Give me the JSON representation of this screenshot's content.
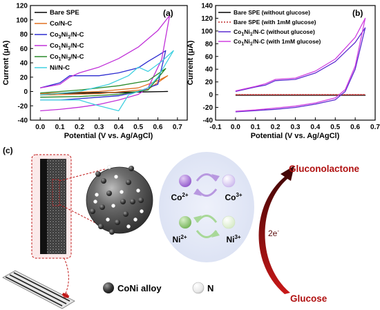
{
  "panel_a": {
    "label": "(a)",
    "chart_data": {
      "type": "line",
      "xlabel": "Potential (V vs. Ag/AgCl)",
      "ylabel": "Current (μA)",
      "xlim": [
        -0.05,
        0.75
      ],
      "ylim": [
        -40,
        120
      ],
      "xticks": [
        "0.0",
        "0.1",
        "0.2",
        "0.3",
        "0.4",
        "0.5",
        "0.6",
        "0.7"
      ],
      "yticks": [
        "-40",
        "-20",
        "0",
        "20",
        "40",
        "60",
        "80",
        "100",
        "120"
      ],
      "legend_position": "top-left",
      "series": [
        {
          "name": "Bare SPE",
          "color": "#000000",
          "forward": [
            [
              0.0,
              -3
            ],
            [
              0.3,
              -1.5
            ],
            [
              0.65,
              0
            ]
          ],
          "reverse": [
            [
              0.65,
              0
            ],
            [
              0.3,
              -2
            ],
            [
              0.0,
              -3
            ]
          ]
        },
        {
          "name": "Co/N-C",
          "color": "#e07020",
          "forward": [
            [
              0.0,
              -3
            ],
            [
              0.3,
              0
            ],
            [
              0.5,
              5
            ],
            [
              0.6,
              15
            ],
            [
              0.65,
              22
            ]
          ],
          "reverse": [
            [
              0.65,
              22
            ],
            [
              0.55,
              3
            ],
            [
              0.3,
              -3
            ],
            [
              0.0,
              -5
            ]
          ]
        },
        {
          "name": "Co3Ni1/N-C",
          "color": "#2b2bd0",
          "forward": [
            [
              0.0,
              5
            ],
            [
              0.1,
              12
            ],
            [
              0.15,
              22
            ],
            [
              0.2,
              22
            ],
            [
              0.3,
              22
            ],
            [
              0.4,
              26
            ],
            [
              0.5,
              33
            ],
            [
              0.55,
              42
            ],
            [
              0.6,
              50
            ],
            [
              0.64,
              57
            ]
          ],
          "reverse": [
            [
              0.64,
              57
            ],
            [
              0.6,
              10
            ],
            [
              0.5,
              0
            ],
            [
              0.4,
              -6
            ],
            [
              0.3,
              -8
            ],
            [
              0.2,
              -10
            ],
            [
              0.1,
              -12
            ],
            [
              0.0,
              -12
            ]
          ]
        },
        {
          "name": "Co1Ni1/N-C",
          "color": "#c030d8",
          "forward": [
            [
              0.0,
              5
            ],
            [
              0.1,
              10
            ],
            [
              0.15,
              20
            ],
            [
              0.2,
              26
            ],
            [
              0.3,
              34
            ],
            [
              0.4,
              46
            ],
            [
              0.5,
              62
            ],
            [
              0.6,
              85
            ],
            [
              0.66,
              106
            ]
          ],
          "reverse": [
            [
              0.66,
              106
            ],
            [
              0.62,
              45
            ],
            [
              0.55,
              5
            ],
            [
              0.5,
              -4
            ],
            [
              0.4,
              -12
            ],
            [
              0.3,
              -18
            ],
            [
              0.2,
              -22
            ],
            [
              0.1,
              -25
            ],
            [
              0.0,
              -27
            ]
          ]
        },
        {
          "name": "Co1Ni3/N-C",
          "color": "#2a8a2a",
          "forward": [
            [
              0.0,
              -2
            ],
            [
              0.2,
              2
            ],
            [
              0.4,
              8
            ],
            [
              0.55,
              15
            ],
            [
              0.64,
              32
            ]
          ],
          "reverse": [
            [
              0.64,
              32
            ],
            [
              0.55,
              2
            ],
            [
              0.4,
              -4
            ],
            [
              0.2,
              -7
            ],
            [
              0.0,
              -8
            ]
          ]
        },
        {
          "name": "Ni/N-C",
          "color": "#40d0e0",
          "forward": [
            [
              0.0,
              -5
            ],
            [
              0.2,
              0
            ],
            [
              0.35,
              10
            ],
            [
              0.45,
              22
            ],
            [
              0.5,
              34
            ],
            [
              0.55,
              28
            ],
            [
              0.62,
              42
            ],
            [
              0.68,
              57
            ]
          ],
          "reverse": [
            [
              0.68,
              57
            ],
            [
              0.6,
              20
            ],
            [
              0.55,
              5
            ],
            [
              0.45,
              -5
            ],
            [
              0.4,
              -27
            ],
            [
              0.3,
              -20
            ],
            [
              0.2,
              -12
            ],
            [
              0.0,
              -12
            ]
          ]
        }
      ]
    },
    "legend": [
      {
        "pre": "Bare SPE",
        "sub1": "",
        "mid": "",
        "sub2": "",
        "post": ""
      },
      {
        "pre": "Co/N-C",
        "sub1": "",
        "mid": "",
        "sub2": "",
        "post": ""
      },
      {
        "pre": "Co",
        "sub1": "3",
        "mid": "Ni",
        "sub2": "1",
        "post": "/N-C"
      },
      {
        "pre": "Co",
        "sub1": "1",
        "mid": "Ni",
        "sub2": "1",
        "post": "/N-C"
      },
      {
        "pre": "Co",
        "sub1": "1",
        "mid": "Ni",
        "sub2": "3",
        "post": "/N-C"
      },
      {
        "pre": "Ni/N-C",
        "sub1": "",
        "mid": "",
        "sub2": "",
        "post": ""
      }
    ]
  },
  "panel_b": {
    "label": "(b)",
    "chart_data": {
      "type": "line",
      "xlabel": "Potential (V vs. Ag/AgCl)",
      "ylabel": "Current (μA)",
      "xlim": [
        -0.1,
        0.7
      ],
      "ylim": [
        -40,
        140
      ],
      "xticks": [
        "-0.1",
        "0.0",
        "0.1",
        "0.2",
        "0.3",
        "0.4",
        "0.5",
        "0.6",
        "0.7"
      ],
      "yticks": [
        "-40",
        "-20",
        "0",
        "20",
        "40",
        "60",
        "80",
        "100",
        "120",
        "140"
      ],
      "legend_position": "top-left",
      "series": [
        {
          "name": "Bare SPE (without glucose)",
          "color": "#000000",
          "style": "solid",
          "forward": [
            [
              0.0,
              -1
            ],
            [
              0.65,
              -1
            ]
          ],
          "reverse": [
            [
              0.65,
              -1
            ],
            [
              0.0,
              -1
            ]
          ]
        },
        {
          "name": "Bare SPE (with 1mM glucose)",
          "color": "#c03030",
          "style": "dotted",
          "forward": [
            [
              0.0,
              0
            ],
            [
              0.65,
              0
            ]
          ],
          "reverse": [
            [
              0.65,
              0
            ],
            [
              0.0,
              0
            ]
          ]
        },
        {
          "name": "Co1Ni1/N-C (without glucose)",
          "color": "#5b2bd0",
          "style": "solid",
          "forward": [
            [
              0.0,
              5
            ],
            [
              0.1,
              12
            ],
            [
              0.15,
              15
            ],
            [
              0.2,
              22
            ],
            [
              0.3,
              24
            ],
            [
              0.4,
              34
            ],
            [
              0.5,
              52
            ],
            [
              0.6,
              82
            ],
            [
              0.65,
              105
            ]
          ],
          "reverse": [
            [
              0.65,
              105
            ],
            [
              0.6,
              40
            ],
            [
              0.55,
              5
            ],
            [
              0.5,
              -8
            ],
            [
              0.4,
              -15
            ],
            [
              0.3,
              -20
            ],
            [
              0.2,
              -23
            ],
            [
              0.1,
              -25
            ],
            [
              0.0,
              -27
            ]
          ]
        },
        {
          "name": "Co1Ni1/N-C (with 1mM glucose)",
          "color": "#d040e0",
          "style": "solid",
          "forward": [
            [
              0.0,
              6
            ],
            [
              0.1,
              13
            ],
            [
              0.15,
              17
            ],
            [
              0.2,
              24
            ],
            [
              0.3,
              26
            ],
            [
              0.4,
              37
            ],
            [
              0.5,
              56
            ],
            [
              0.6,
              90
            ],
            [
              0.65,
              120
            ]
          ],
          "reverse": [
            [
              0.65,
              120
            ],
            [
              0.6,
              45
            ],
            [
              0.55,
              8
            ],
            [
              0.5,
              -5
            ],
            [
              0.4,
              -13
            ],
            [
              0.3,
              -18
            ],
            [
              0.2,
              -21
            ],
            [
              0.1,
              -24
            ],
            [
              0.0,
              -26
            ]
          ]
        }
      ]
    },
    "legend": [
      {
        "pre": "Bare SPE (without glucose)",
        "sub1": "",
        "mid": "",
        "sub2": "",
        "post": ""
      },
      {
        "pre": "Bare SPE (with 1mM glucose)",
        "sub1": "",
        "mid": "",
        "sub2": "",
        "post": ""
      },
      {
        "pre": "Co",
        "sub1": "1",
        "mid": "Ni",
        "sub2": "1",
        "post": "/N-C (without glucose)"
      },
      {
        "pre": "Co",
        "sub1": "1",
        "mid": "Ni",
        "sub2": "1",
        "post": "/N-C (with 1mM glucose)"
      }
    ]
  },
  "panel_c": {
    "label": "(c)",
    "co2": {
      "base": "Co",
      "sup": "2+"
    },
    "co3": {
      "base": "Co",
      "sup": "3+"
    },
    "ni2": {
      "base": "Ni",
      "sup": "2+"
    },
    "ni3": {
      "base": "Ni",
      "sup": "3+"
    },
    "legend_alloy": "CoNi alloy",
    "legend_n": "N",
    "product": "Gluconolactone",
    "reactant": "Glucose",
    "electrons": {
      "base": "2e",
      "sup": "-"
    },
    "colors": {
      "co2": "#9b5fd0",
      "co3": "#d8c8f0",
      "ni2": "#8cc870",
      "ni3": "#e4f2d8",
      "arrow_dark": "#5a0a0a",
      "text_red": "#b01010",
      "cycle_purple": "#b898e0",
      "cycle_green": "#a8d898"
    }
  }
}
